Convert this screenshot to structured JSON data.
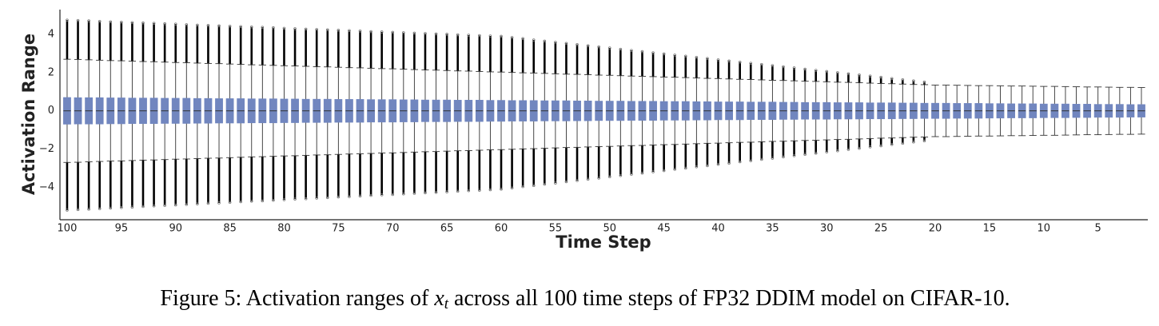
{
  "chart_data": {
    "type": "box",
    "xlabel": "Time Step",
    "ylabel": "Activation Range",
    "color": "#7186bf",
    "grid": false,
    "xlim": [
      100.66,
      0.41
    ],
    "ylim": [
      -5.7,
      5.3
    ],
    "xticks": [
      100,
      95,
      90,
      85,
      80,
      75,
      70,
      65,
      60,
      55,
      50,
      45,
      40,
      35,
      30,
      25,
      20,
      15,
      10,
      5
    ],
    "yticks": [
      {
        "value": -4,
        "label": "−4"
      },
      {
        "value": -2,
        "label": "−2"
      },
      0,
      2,
      4
    ],
    "x": [
      100,
      99,
      98,
      97,
      96,
      95,
      94,
      93,
      92,
      91,
      90,
      89,
      88,
      87,
      86,
      85,
      84,
      83,
      82,
      81,
      80,
      79,
      78,
      77,
      76,
      75,
      74,
      73,
      72,
      71,
      70,
      69,
      68,
      67,
      66,
      65,
      64,
      63,
      62,
      61,
      60,
      59,
      58,
      57,
      56,
      55,
      54,
      53,
      52,
      51,
      50,
      49,
      48,
      47,
      46,
      45,
      44,
      43,
      42,
      41,
      40,
      39,
      38,
      37,
      36,
      35,
      34,
      33,
      32,
      31,
      30,
      29,
      28,
      27,
      26,
      25,
      24,
      23,
      22,
      21,
      20,
      19,
      18,
      17,
      16,
      15,
      14,
      13,
      12,
      11,
      10,
      9,
      8,
      7,
      6,
      5,
      4,
      3,
      2,
      1
    ],
    "boxes": {
      "q1": [
        -0.7,
        -0.69,
        -0.69,
        -0.69,
        -0.68,
        -0.68,
        -0.67,
        -0.67,
        -0.67,
        -0.66,
        -0.66,
        -0.66,
        -0.65,
        -0.65,
        -0.64,
        -0.64,
        -0.64,
        -0.63,
        -0.63,
        -0.63,
        -0.62,
        -0.62,
        -0.61,
        -0.61,
        -0.61,
        -0.6,
        -0.6,
        -0.6,
        -0.59,
        -0.59,
        -0.59,
        -0.58,
        -0.58,
        -0.57,
        -0.57,
        -0.57,
        -0.56,
        -0.56,
        -0.56,
        -0.55,
        -0.55,
        -0.54,
        -0.54,
        -0.54,
        -0.53,
        -0.53,
        -0.53,
        -0.52,
        -0.52,
        -0.51,
        -0.51,
        -0.51,
        -0.5,
        -0.5,
        -0.5,
        -0.49,
        -0.49,
        -0.49,
        -0.48,
        -0.48,
        -0.47,
        -0.47,
        -0.47,
        -0.46,
        -0.46,
        -0.46,
        -0.45,
        -0.45,
        -0.44,
        -0.44,
        -0.44,
        -0.43,
        -0.43,
        -0.43,
        -0.42,
        -0.42,
        -0.42,
        -0.41,
        -0.41,
        -0.4,
        -0.4,
        -0.4,
        -0.39,
        -0.39,
        -0.39,
        -0.38,
        -0.38,
        -0.37,
        -0.37,
        -0.37,
        -0.36,
        -0.36,
        -0.36,
        -0.35,
        -0.35,
        -0.34,
        -0.34,
        -0.34,
        -0.33,
        -0.33
      ],
      "median": [
        0,
        0,
        0,
        0,
        0,
        0,
        0,
        0,
        0,
        0,
        0,
        0,
        0,
        0,
        0,
        0,
        0,
        0,
        0,
        0,
        0,
        0,
        0,
        0,
        0,
        0,
        0,
        0,
        0,
        0,
        0,
        0,
        0,
        0,
        0,
        0,
        0,
        0,
        0,
        0,
        0,
        0,
        0,
        0,
        0,
        0,
        0,
        0,
        0,
        0,
        0,
        0,
        0,
        0,
        0,
        0,
        0,
        0,
        0,
        0,
        0,
        0,
        0,
        0,
        0,
        0,
        0,
        0,
        0,
        0,
        0,
        0,
        0,
        0,
        0,
        0,
        0,
        0,
        0,
        0,
        0,
        0,
        0,
        0,
        0,
        0,
        0,
        0,
        0,
        0,
        0,
        0,
        0,
        0,
        0,
        0,
        0,
        0,
        0,
        0
      ],
      "q3": [
        0.7,
        0.69,
        0.69,
        0.69,
        0.68,
        0.68,
        0.67,
        0.67,
        0.67,
        0.66,
        0.66,
        0.66,
        0.65,
        0.65,
        0.64,
        0.64,
        0.64,
        0.63,
        0.63,
        0.63,
        0.62,
        0.62,
        0.61,
        0.61,
        0.61,
        0.6,
        0.6,
        0.6,
        0.59,
        0.59,
        0.59,
        0.58,
        0.58,
        0.57,
        0.57,
        0.57,
        0.56,
        0.56,
        0.56,
        0.55,
        0.55,
        0.54,
        0.54,
        0.54,
        0.53,
        0.53,
        0.53,
        0.52,
        0.52,
        0.51,
        0.51,
        0.51,
        0.5,
        0.5,
        0.5,
        0.49,
        0.49,
        0.49,
        0.48,
        0.48,
        0.47,
        0.47,
        0.47,
        0.46,
        0.46,
        0.46,
        0.45,
        0.45,
        0.44,
        0.44,
        0.44,
        0.43,
        0.43,
        0.43,
        0.42,
        0.42,
        0.42,
        0.41,
        0.41,
        0.4,
        0.4,
        0.4,
        0.39,
        0.39,
        0.39,
        0.38,
        0.38,
        0.37,
        0.37,
        0.37,
        0.36,
        0.36,
        0.36,
        0.35,
        0.35,
        0.34,
        0.34,
        0.34,
        0.33,
        0.33
      ],
      "whislo": [
        -2.7,
        -2.69,
        -2.67,
        -2.65,
        -2.63,
        -2.62,
        -2.6,
        -2.58,
        -2.57,
        -2.55,
        -2.53,
        -2.52,
        -2.5,
        -2.48,
        -2.47,
        -2.45,
        -2.43,
        -2.41,
        -2.4,
        -2.38,
        -2.36,
        -2.35,
        -2.33,
        -2.31,
        -2.3,
        -2.28,
        -2.26,
        -2.25,
        -2.23,
        -2.21,
        -2.2,
        -2.18,
        -2.16,
        -2.14,
        -2.13,
        -2.11,
        -2.09,
        -2.08,
        -2.06,
        -2.04,
        -2.03,
        -2.01,
        -1.99,
        -1.98,
        -1.96,
        -1.94,
        -1.92,
        -1.91,
        -1.89,
        -1.87,
        -1.86,
        -1.84,
        -1.82,
        -1.81,
        -1.79,
        -1.77,
        -1.76,
        -1.74,
        -1.72,
        -1.7,
        -1.69,
        -1.67,
        -1.65,
        -1.64,
        -1.62,
        -1.6,
        -1.59,
        -1.57,
        -1.55,
        -1.54,
        -1.52,
        -1.5,
        -1.49,
        -1.47,
        -1.45,
        -1.43,
        -1.42,
        -1.4,
        -1.38,
        -1.37,
        -1.35,
        -1.35,
        -1.34,
        -1.33,
        -1.32,
        -1.32,
        -1.31,
        -1.3,
        -1.3,
        -1.29,
        -1.28,
        -1.28,
        -1.27,
        -1.26,
        -1.25,
        -1.25,
        -1.24,
        -1.23,
        -1.23,
        -1.22
      ],
      "whishi": [
        2.7,
        2.69,
        2.67,
        2.65,
        2.63,
        2.62,
        2.6,
        2.58,
        2.57,
        2.55,
        2.53,
        2.52,
        2.5,
        2.48,
        2.47,
        2.45,
        2.43,
        2.41,
        2.4,
        2.38,
        2.36,
        2.35,
        2.33,
        2.31,
        2.3,
        2.28,
        2.26,
        2.25,
        2.23,
        2.21,
        2.2,
        2.18,
        2.16,
        2.14,
        2.13,
        2.11,
        2.09,
        2.08,
        2.06,
        2.04,
        2.03,
        2.01,
        1.99,
        1.98,
        1.96,
        1.94,
        1.92,
        1.91,
        1.89,
        1.87,
        1.86,
        1.84,
        1.82,
        1.81,
        1.79,
        1.77,
        1.76,
        1.74,
        1.72,
        1.7,
        1.69,
        1.67,
        1.65,
        1.64,
        1.62,
        1.6,
        1.59,
        1.57,
        1.55,
        1.54,
        1.52,
        1.5,
        1.49,
        1.47,
        1.45,
        1.43,
        1.42,
        1.4,
        1.38,
        1.37,
        1.35,
        1.35,
        1.34,
        1.33,
        1.32,
        1.32,
        1.31,
        1.3,
        1.3,
        1.29,
        1.28,
        1.28,
        1.27,
        1.26,
        1.25,
        1.25,
        1.24,
        1.23,
        1.23,
        1.22
      ],
      "fliers_min": [
        -5.2,
        -5.17,
        -5.15,
        -5.12,
        -5.09,
        -5.06,
        -5.04,
        -5.01,
        -4.98,
        -4.95,
        -4.93,
        -4.9,
        -4.87,
        -4.84,
        -4.82,
        -4.79,
        -4.76,
        -4.73,
        -4.71,
        -4.68,
        -4.65,
        -4.62,
        -4.6,
        -4.57,
        -4.54,
        -4.51,
        -4.49,
        -4.46,
        -4.43,
        -4.4,
        -4.38,
        -4.35,
        -4.32,
        -4.29,
        -4.27,
        -4.24,
        -4.21,
        -4.18,
        -4.16,
        -4.13,
        -4.1,
        -4.04,
        -3.97,
        -3.91,
        -3.84,
        -3.78,
        -3.71,
        -3.65,
        -3.58,
        -3.52,
        -3.45,
        -3.39,
        -3.32,
        -3.26,
        -3.19,
        -3.13,
        -3.06,
        -3.0,
        -2.93,
        -2.87,
        -2.8,
        -2.74,
        -2.67,
        -2.61,
        -2.54,
        -2.48,
        -2.41,
        -2.35,
        -2.28,
        -2.22,
        -2.15,
        -2.09,
        -2.02,
        -1.96,
        -1.89,
        -1.83,
        -1.76,
        -1.7,
        -1.63,
        -1.57,
        null,
        null,
        null,
        null,
        null,
        null,
        null,
        null,
        null,
        null,
        null,
        null,
        null,
        null,
        null,
        null,
        null,
        null,
        null,
        null
      ],
      "fliers_max": [
        4.75,
        4.73,
        4.71,
        4.68,
        4.66,
        4.64,
        4.62,
        4.6,
        4.58,
        4.56,
        4.54,
        4.51,
        4.49,
        4.47,
        4.45,
        4.43,
        4.41,
        4.39,
        4.37,
        4.35,
        4.32,
        4.3,
        4.28,
        4.26,
        4.24,
        4.22,
        4.2,
        4.18,
        4.15,
        4.13,
        4.11,
        4.09,
        4.07,
        4.05,
        4.03,
        4.01,
        3.98,
        3.96,
        3.94,
        3.92,
        3.9,
        3.84,
        3.78,
        3.71,
        3.65,
        3.59,
        3.53,
        3.47,
        3.41,
        3.35,
        3.29,
        3.22,
        3.16,
        3.1,
        3.04,
        2.98,
        2.92,
        2.86,
        2.8,
        2.74,
        2.67,
        2.61,
        2.55,
        2.49,
        2.43,
        2.37,
        2.31,
        2.25,
        2.18,
        2.12,
        2.06,
        2.0,
        1.94,
        1.88,
        1.82,
        1.76,
        1.69,
        1.63,
        1.57,
        1.51,
        null,
        null,
        null,
        null,
        null,
        null,
        null,
        null,
        null,
        null,
        null,
        null,
        null,
        null,
        null,
        null,
        null,
        null,
        null,
        null
      ]
    }
  },
  "caption": {
    "before": "Figure 5: Activation ranges of ",
    "math": "x",
    "sub": "t",
    "after": " across all 100 time steps of FP32 DDIM model on CIFAR-10."
  }
}
